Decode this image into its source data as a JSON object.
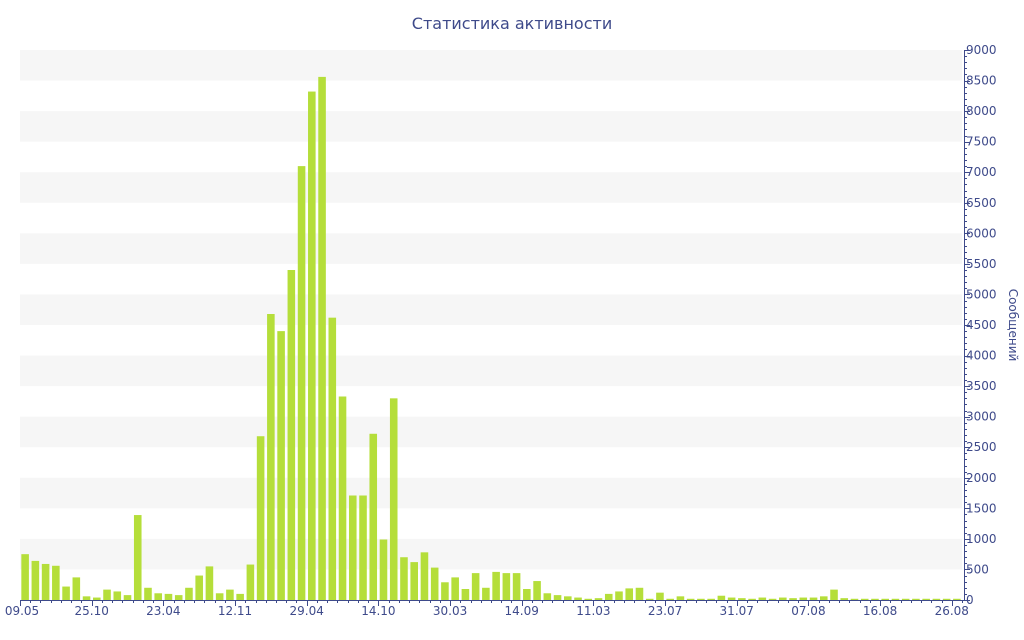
{
  "chart_data": {
    "type": "bar",
    "title": "Статистика активности",
    "xlabel": "",
    "ylabel": "Сообщений",
    "ylim": [
      0,
      9000
    ],
    "y_ticks": [
      0,
      500,
      1000,
      1500,
      2000,
      2500,
      3000,
      3500,
      4000,
      4500,
      5000,
      5500,
      6000,
      6500,
      7000,
      7500,
      8000,
      8500,
      9000
    ],
    "x_tick_labels": [
      {
        "index": 0,
        "label": "09.05"
      },
      {
        "index": 7,
        "label": "25.10"
      },
      {
        "index": 14,
        "label": "23.04"
      },
      {
        "index": 21,
        "label": "12.11"
      },
      {
        "index": 28,
        "label": "29.04"
      },
      {
        "index": 35,
        "label": "14.10"
      },
      {
        "index": 42,
        "label": "30.03"
      },
      {
        "index": 49,
        "label": "14.09"
      },
      {
        "index": 56,
        "label": "11.03"
      },
      {
        "index": 63,
        "label": "23.07"
      },
      {
        "index": 70,
        "label": "31.07"
      },
      {
        "index": 77,
        "label": "07.08"
      },
      {
        "index": 84,
        "label": "16.08"
      },
      {
        "index": 91,
        "label": "26.08"
      }
    ],
    "bar_color": "#b5de3a",
    "band_color": "#f6f6f6",
    "axis_color": "#3e4a8a",
    "grid": true,
    "y_axis_side": "right",
    "values": [
      750,
      640,
      590,
      560,
      220,
      370,
      60,
      40,
      170,
      140,
      80,
      1390,
      200,
      110,
      100,
      80,
      200,
      400,
      550,
      110,
      170,
      100,
      580,
      2680,
      4680,
      4400,
      5400,
      7100,
      8320,
      8560,
      4620,
      3330,
      1710,
      1710,
      2720,
      990,
      3300,
      700,
      620,
      780,
      530,
      290,
      370,
      180,
      440,
      200,
      460,
      440,
      440,
      180,
      310,
      110,
      80,
      60,
      40,
      20,
      30,
      100,
      140,
      190,
      200,
      20,
      120,
      20,
      60,
      20,
      20,
      20,
      70,
      40,
      30,
      20,
      40,
      20,
      40,
      30,
      40,
      40,
      60,
      170,
      30,
      20,
      20,
      20,
      20,
      20,
      20,
      20,
      20,
      20,
      20,
      20
    ]
  }
}
